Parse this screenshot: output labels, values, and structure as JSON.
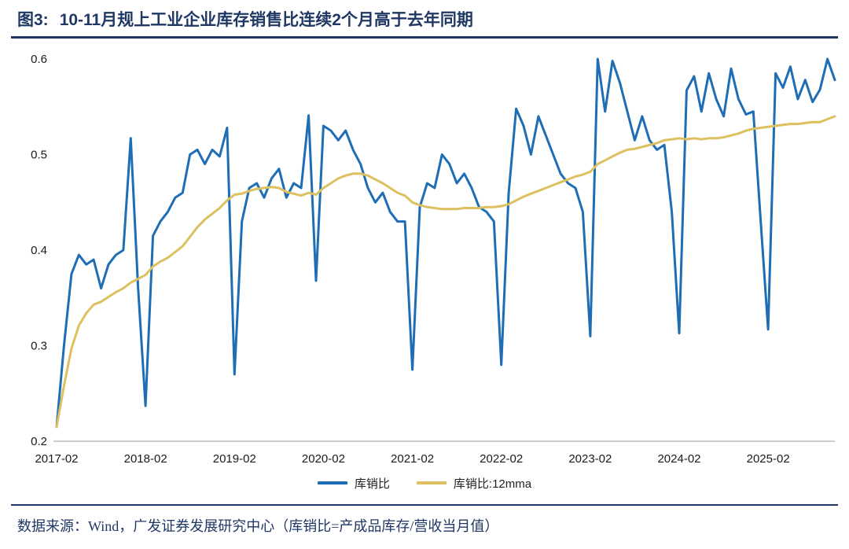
{
  "header": {
    "figure_label": "图3:",
    "title": "10-11月规上工业企业库存销售比连续2个月高于去年同期"
  },
  "footer": {
    "source": "数据来源：Wind，广发证券发展研究中心（库销比=产成品库存/营收当月值）"
  },
  "colors": {
    "navy": "#1f3864",
    "axis_text": "#1a1a1a",
    "series_blue": "#1f6eb5",
    "series_gold": "#ddc05f",
    "background": "#ffffff"
  },
  "chart_data": {
    "type": "line",
    "title": "",
    "x_start": "2017-02",
    "x_end": "2025-11",
    "frequency": "monthly",
    "x_tick_every": 12,
    "x_tick_labels": [
      "2017-02",
      "2018-02",
      "2019-02",
      "2020-02",
      "2021-02",
      "2022-02",
      "2023-02",
      "2024-02",
      "2025-02"
    ],
    "ylim": [
      0.2,
      0.6
    ],
    "y_ticks": [
      0.2,
      0.3,
      0.4,
      0.5,
      0.6
    ],
    "y_tick_labels": [
      "0.2",
      "0.3",
      "0.4",
      "0.5",
      "0.6"
    ],
    "grid": false,
    "legend_position": "bottom",
    "series": [
      {
        "name": "库销比",
        "color": "#1f6eb5",
        "values": [
          0.215,
          0.3,
          0.375,
          0.395,
          0.385,
          0.39,
          0.36,
          0.385,
          0.395,
          0.4,
          0.517,
          0.36,
          0.237,
          0.415,
          0.43,
          0.44,
          0.455,
          0.46,
          0.5,
          0.505,
          0.49,
          0.505,
          0.498,
          0.528,
          0.27,
          0.43,
          0.465,
          0.47,
          0.455,
          0.475,
          0.485,
          0.455,
          0.47,
          0.465,
          0.541,
          0.368,
          0.53,
          0.525,
          0.515,
          0.525,
          0.505,
          0.49,
          0.465,
          0.45,
          0.46,
          0.44,
          0.43,
          0.43,
          0.275,
          0.445,
          0.47,
          0.465,
          0.5,
          0.49,
          0.47,
          0.48,
          0.465,
          0.445,
          0.44,
          0.43,
          0.28,
          0.46,
          0.548,
          0.53,
          0.5,
          0.54,
          0.52,
          0.5,
          0.48,
          0.47,
          0.465,
          0.44,
          0.31,
          0.6,
          0.545,
          0.598,
          0.575,
          0.545,
          0.515,
          0.54,
          0.515,
          0.505,
          0.51,
          0.44,
          0.313,
          0.567,
          0.582,
          0.545,
          0.585,
          0.558,
          0.54,
          0.59,
          0.558,
          0.542,
          0.545,
          0.43,
          0.317,
          0.585,
          0.57,
          0.592,
          0.558,
          0.578,
          0.555,
          0.568,
          0.6,
          0.578
        ]
      },
      {
        "name": "库销比:12mma",
        "color": "#ddc05f",
        "values": [
          0.215,
          0.258,
          0.297,
          0.321,
          0.334,
          0.343,
          0.346,
          0.351,
          0.356,
          0.36,
          0.366,
          0.37,
          0.374,
          0.383,
          0.388,
          0.392,
          0.398,
          0.404,
          0.414,
          0.424,
          0.432,
          0.438,
          0.444,
          0.452,
          0.458,
          0.459,
          0.462,
          0.464,
          0.465,
          0.466,
          0.465,
          0.461,
          0.459,
          0.457,
          0.46,
          0.458,
          0.465,
          0.47,
          0.475,
          0.478,
          0.48,
          0.48,
          0.478,
          0.474,
          0.47,
          0.465,
          0.46,
          0.457,
          0.45,
          0.447,
          0.445,
          0.444,
          0.443,
          0.443,
          0.443,
          0.444,
          0.444,
          0.444,
          0.445,
          0.445,
          0.446,
          0.448,
          0.452,
          0.456,
          0.459,
          0.462,
          0.465,
          0.468,
          0.471,
          0.474,
          0.477,
          0.479,
          0.482,
          0.49,
          0.494,
          0.498,
          0.502,
          0.505,
          0.506,
          0.508,
          0.51,
          0.512,
          0.515,
          0.516,
          0.517,
          0.516,
          0.517,
          0.516,
          0.517,
          0.517,
          0.518,
          0.52,
          0.522,
          0.525,
          0.527,
          0.528,
          0.529,
          0.53,
          0.531,
          0.532,
          0.532,
          0.533,
          0.534,
          0.534,
          0.537,
          0.54
        ]
      }
    ]
  }
}
